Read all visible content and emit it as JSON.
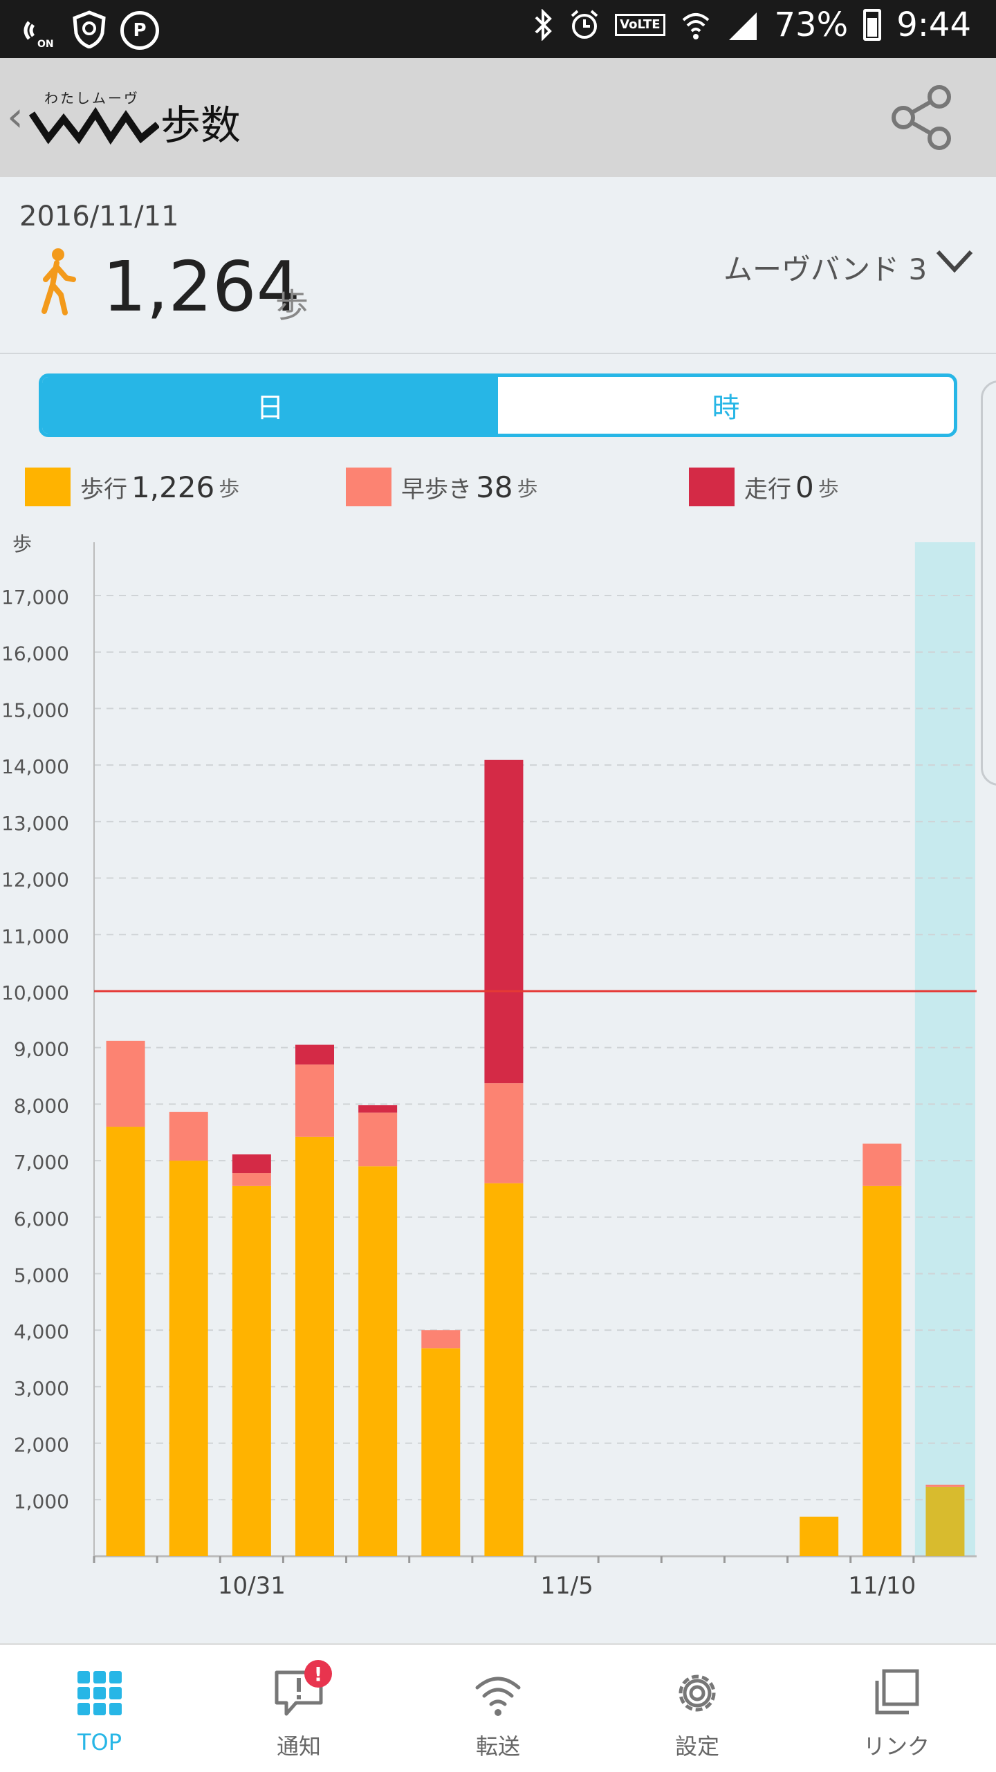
{
  "status_bar": {
    "battery": "73%",
    "time": "9:44",
    "network_badge": "VoLTE",
    "icons": [
      "nfc-on-icon",
      "shield-icon",
      "p-icon",
      "bluetooth-icon",
      "alarm-icon",
      "wifi-icon",
      "signal-icon",
      "battery-icon"
    ]
  },
  "header": {
    "logo_small_text": "わたしムーヴ",
    "title": "歩数"
  },
  "summary": {
    "date": "2016/11/11",
    "steps": "1,264",
    "steps_unit": "歩",
    "device": "ムーヴバンド 3"
  },
  "tabs": [
    {
      "label": "日",
      "active": true
    },
    {
      "label": "時",
      "active": false
    }
  ],
  "legend": [
    {
      "label": "歩行",
      "value": "1,226",
      "unit": "歩",
      "color": "#ffb300"
    },
    {
      "label": "早歩き",
      "value": "38",
      "unit": "歩",
      "color": "#fc8372"
    },
    {
      "label": "走行",
      "value": "0",
      "unit": "歩",
      "color": "#d42a46"
    }
  ],
  "chart_data": {
    "type": "bar",
    "stacked": true,
    "ylabel": "歩",
    "ylim": [
      0,
      17600
    ],
    "yticks": [
      1000,
      2000,
      3000,
      4000,
      5000,
      6000,
      7000,
      8000,
      9000,
      10000,
      11000,
      12000,
      13000,
      14000,
      15000,
      16000,
      17000
    ],
    "ytick_labels": [
      "1,000",
      "2,000",
      "3,000",
      "4,000",
      "5,000",
      "6,000",
      "7,000",
      "8,000",
      "9,000",
      "10,000",
      "11,000",
      "12,000",
      "13,000",
      "14,000",
      "15,000",
      "16,000",
      "17,000"
    ],
    "goal_line": 10000,
    "goal_color": "#e53935",
    "categories": [
      "10/29",
      "10/30",
      "10/31",
      "11/1",
      "11/2",
      "11/3",
      "11/4",
      "11/5",
      "11/6",
      "11/7",
      "11/8",
      "11/9",
      "11/10",
      "11/11"
    ],
    "x_tick_labels": [
      {
        "category": "10/31",
        "label": "10/31"
      },
      {
        "category": "11/5",
        "label": "11/5"
      },
      {
        "category": "11/10",
        "label": "11/10"
      }
    ],
    "series": [
      {
        "name": "歩行",
        "color": "#ffb300",
        "values": [
          7600,
          7000,
          6550,
          7420,
          6900,
          3680,
          6600,
          0,
          0,
          0,
          0,
          700,
          6550,
          1226
        ]
      },
      {
        "name": "早歩き",
        "color": "#fc8372",
        "values": [
          1520,
          860,
          230,
          1280,
          950,
          320,
          1770,
          0,
          0,
          0,
          0,
          0,
          750,
          38
        ]
      },
      {
        "name": "走行",
        "color": "#d42a46",
        "values": [
          0,
          0,
          330,
          350,
          130,
          0,
          5720,
          0,
          0,
          0,
          0,
          0,
          0,
          0
        ]
      }
    ],
    "highlight_category": "11/11",
    "highlight_color": "#c7eaee",
    "grid": true
  },
  "bottom_nav": [
    {
      "label": "TOP",
      "icon": "grid-icon",
      "active": true
    },
    {
      "label": "通知",
      "icon": "notification-icon",
      "active": false,
      "badge": "!"
    },
    {
      "label": "転送",
      "icon": "transfer-icon",
      "active": false
    },
    {
      "label": "設定",
      "icon": "settings-gear-icon",
      "active": false
    },
    {
      "label": "リンク",
      "icon": "link-icon",
      "active": false
    }
  ]
}
